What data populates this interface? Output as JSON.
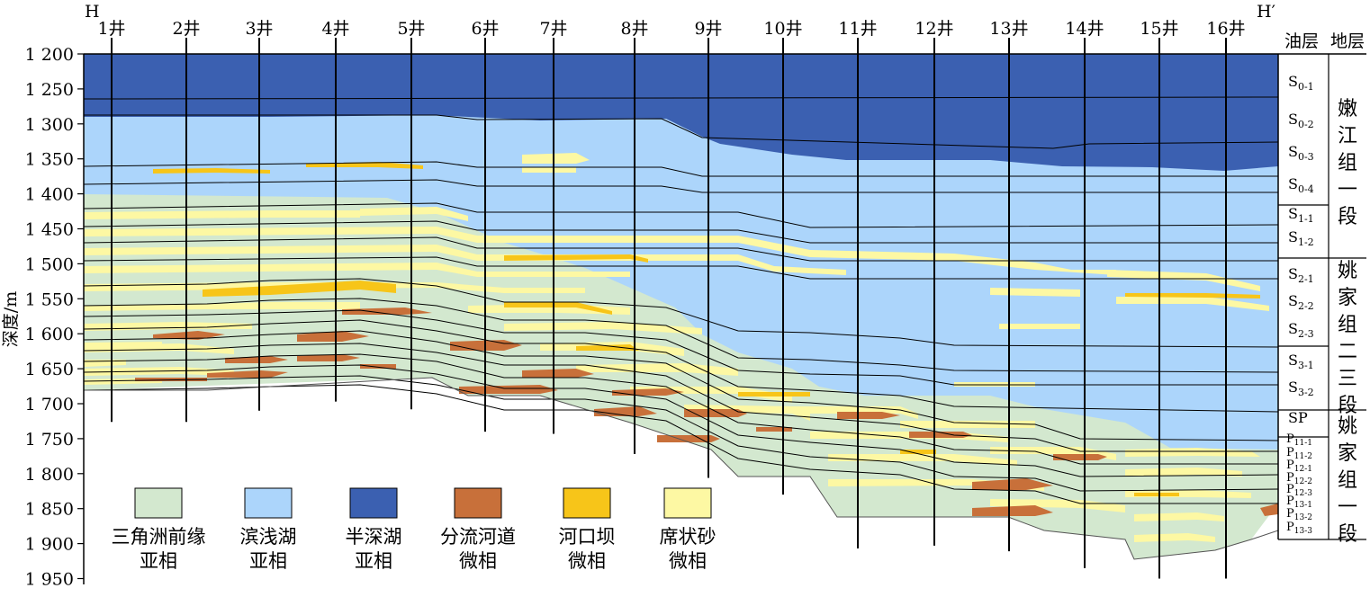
{
  "section": {
    "left_marker": "H",
    "right_marker": "H′",
    "y_axis_label": "深度/m",
    "depth_ticks": [
      "1 200",
      "1 250",
      "1 300",
      "1 350",
      "1 400",
      "1 450",
      "1 500",
      "1 550",
      "1 600",
      "1 650",
      "1 700",
      "1 750",
      "1 800",
      "1 850",
      "1 900",
      "1 950"
    ],
    "wells": [
      {
        "name": "1井",
        "bottom_m": 1726
      },
      {
        "name": "2井",
        "bottom_m": 1726
      },
      {
        "name": "3井",
        "bottom_m": 1710
      },
      {
        "name": "4井",
        "bottom_m": 1697
      },
      {
        "name": "5井",
        "bottom_m": 1708
      },
      {
        "name": "6井",
        "bottom_m": 1740
      },
      {
        "name": "7井",
        "bottom_m": 1743
      },
      {
        "name": "8井",
        "bottom_m": 1772
      },
      {
        "name": "9井",
        "bottom_m": 1806
      },
      {
        "name": "10井",
        "bottom_m": 1830
      },
      {
        "name": "11井",
        "bottom_m": 1907
      },
      {
        "name": "12井",
        "bottom_m": 1903
      },
      {
        "name": "13井",
        "bottom_m": 1911
      },
      {
        "name": "14井",
        "bottom_m": 1935
      },
      {
        "name": "15井",
        "bottom_m": 1950
      },
      {
        "name": "16井",
        "bottom_m": 1950
      }
    ]
  },
  "column": {
    "oil_layer_header": "油层",
    "strata_header": "地层",
    "groups": [
      {
        "layers": [
          {
            "base": "S",
            "sub": "0-1"
          },
          {
            "base": "S",
            "sub": "0-2"
          },
          {
            "base": "S",
            "sub": "0-3"
          },
          {
            "base": "S",
            "sub": "0-4"
          }
        ],
        "formation": "嫩江组一段"
      },
      {
        "layers": [
          {
            "base": "S",
            "sub": "1-1"
          },
          {
            "base": "S",
            "sub": "1-2"
          }
        ],
        "formation": ""
      },
      {
        "layers": [
          {
            "base": "S",
            "sub": "2-1"
          },
          {
            "base": "S",
            "sub": "2-2"
          },
          {
            "base": "S",
            "sub": "2-3"
          }
        ],
        "formation": "姚家组二三段"
      },
      {
        "layers": [
          {
            "base": "S",
            "sub": "3-1"
          },
          {
            "base": "S",
            "sub": "3-2"
          }
        ],
        "formation": ""
      },
      {
        "layers": [
          {
            "base": "SP",
            "sub": ""
          }
        ],
        "formation": "姚家组一段"
      },
      {
        "layers": [
          {
            "base": "P",
            "sub": "11-1"
          },
          {
            "base": "P",
            "sub": "11-2"
          },
          {
            "base": "P",
            "sub": "12-1"
          },
          {
            "base": "P",
            "sub": "12-2"
          },
          {
            "base": "P",
            "sub": "12-3"
          },
          {
            "base": "P",
            "sub": "13-1"
          },
          {
            "base": "P",
            "sub": "13-2"
          },
          {
            "base": "P",
            "sub": "13-3"
          }
        ],
        "formation": ""
      }
    ]
  },
  "legend": [
    {
      "line1": "三角洲前缘",
      "line2": "亚相",
      "color": "#d3e8cf"
    },
    {
      "line1": "滨浅湖",
      "line2": "亚相",
      "color": "#acd5fb"
    },
    {
      "line1": "半深湖",
      "line2": "亚相",
      "color": "#3b60b1"
    },
    {
      "line1": "分流河道",
      "line2": "微相",
      "color": "#c8703a"
    },
    {
      "line1": "河口坝",
      "line2": "微相",
      "color": "#f7c519"
    },
    {
      "line1": "席状砂",
      "line2": "微相",
      "color": "#fdf8a3"
    }
  ]
}
